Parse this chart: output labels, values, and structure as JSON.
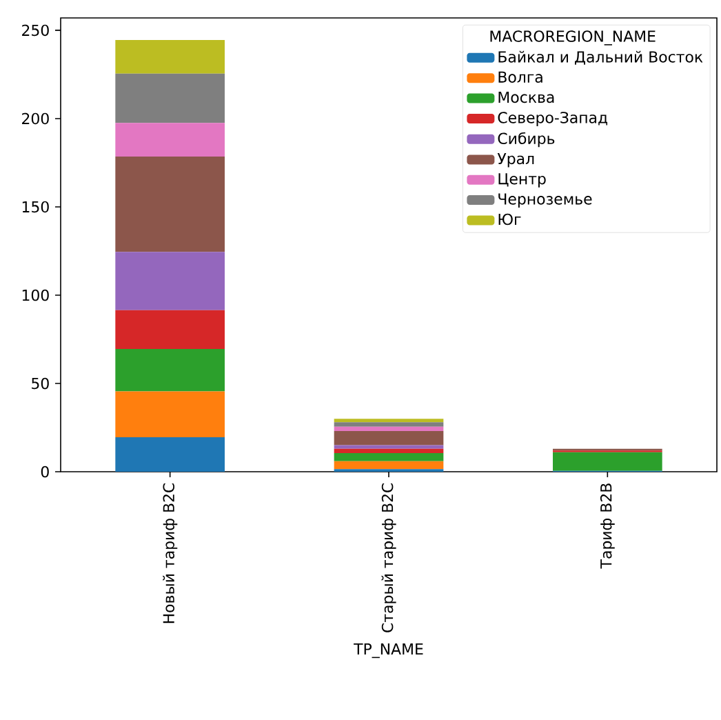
{
  "chart_data": {
    "type": "bar",
    "stacked": true,
    "xlabel": "TP_NAME",
    "legend_title": "MACROREGION_NAME",
    "legend": "top right",
    "grid": false,
    "categories": [
      "Новый тариф B2C",
      "Старый тариф B2C",
      "Тариф B2B"
    ],
    "ylim": [
      0,
      257
    ],
    "yticks": [
      0,
      50,
      100,
      150,
      200,
      250
    ],
    "series": [
      {
        "name": "Байкал и Дальний Восток",
        "color": "#1f77b4",
        "values": [
          19.5,
          1.5,
          0.5
        ]
      },
      {
        "name": "Волга",
        "color": "#ff7f0e",
        "values": [
          26,
          4.5,
          0
        ]
      },
      {
        "name": "Москва",
        "color": "#2ca02c",
        "values": [
          24,
          4.5,
          10.5
        ]
      },
      {
        "name": "Северо-Запад",
        "color": "#d62728",
        "values": [
          22,
          2.5,
          1
        ]
      },
      {
        "name": "Сибирь",
        "color": "#9467bd",
        "values": [
          33,
          2,
          0
        ]
      },
      {
        "name": "Урал",
        "color": "#8c564b",
        "values": [
          54,
          8,
          1
        ]
      },
      {
        "name": "Центр",
        "color": "#e377c2",
        "values": [
          19,
          2.5,
          0
        ]
      },
      {
        "name": "Черноземье",
        "color": "#7f7f7f",
        "values": [
          28,
          2.5,
          0
        ]
      },
      {
        "name": "Юг",
        "color": "#bcbd22",
        "values": [
          19,
          2,
          0
        ]
      }
    ]
  }
}
